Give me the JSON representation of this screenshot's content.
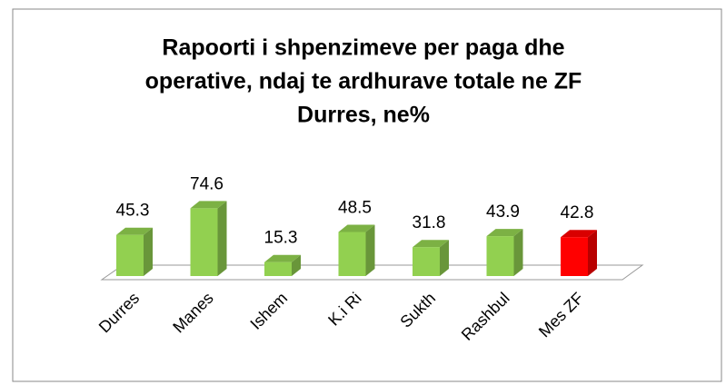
{
  "chart_data": {
    "type": "bar3d",
    "title": [
      "Rapoorti i shpenzimeve per paga dhe",
      "operative, ndaj te ardhurave totale ne ZF",
      "Durres, ne%"
    ],
    "categories": [
      "Durres",
      "Manes",
      "Ishem",
      "K.i Ri",
      "Sukth",
      "Rashbul",
      "Mes ZF"
    ],
    "values": [
      45.3,
      74.6,
      15.3,
      48.5,
      31.8,
      43.9,
      42.8
    ],
    "colors": [
      "#92d050",
      "#92d050",
      "#92d050",
      "#92d050",
      "#92d050",
      "#92d050",
      "#ff0000"
    ],
    "ylim": [
      0,
      80
    ]
  }
}
